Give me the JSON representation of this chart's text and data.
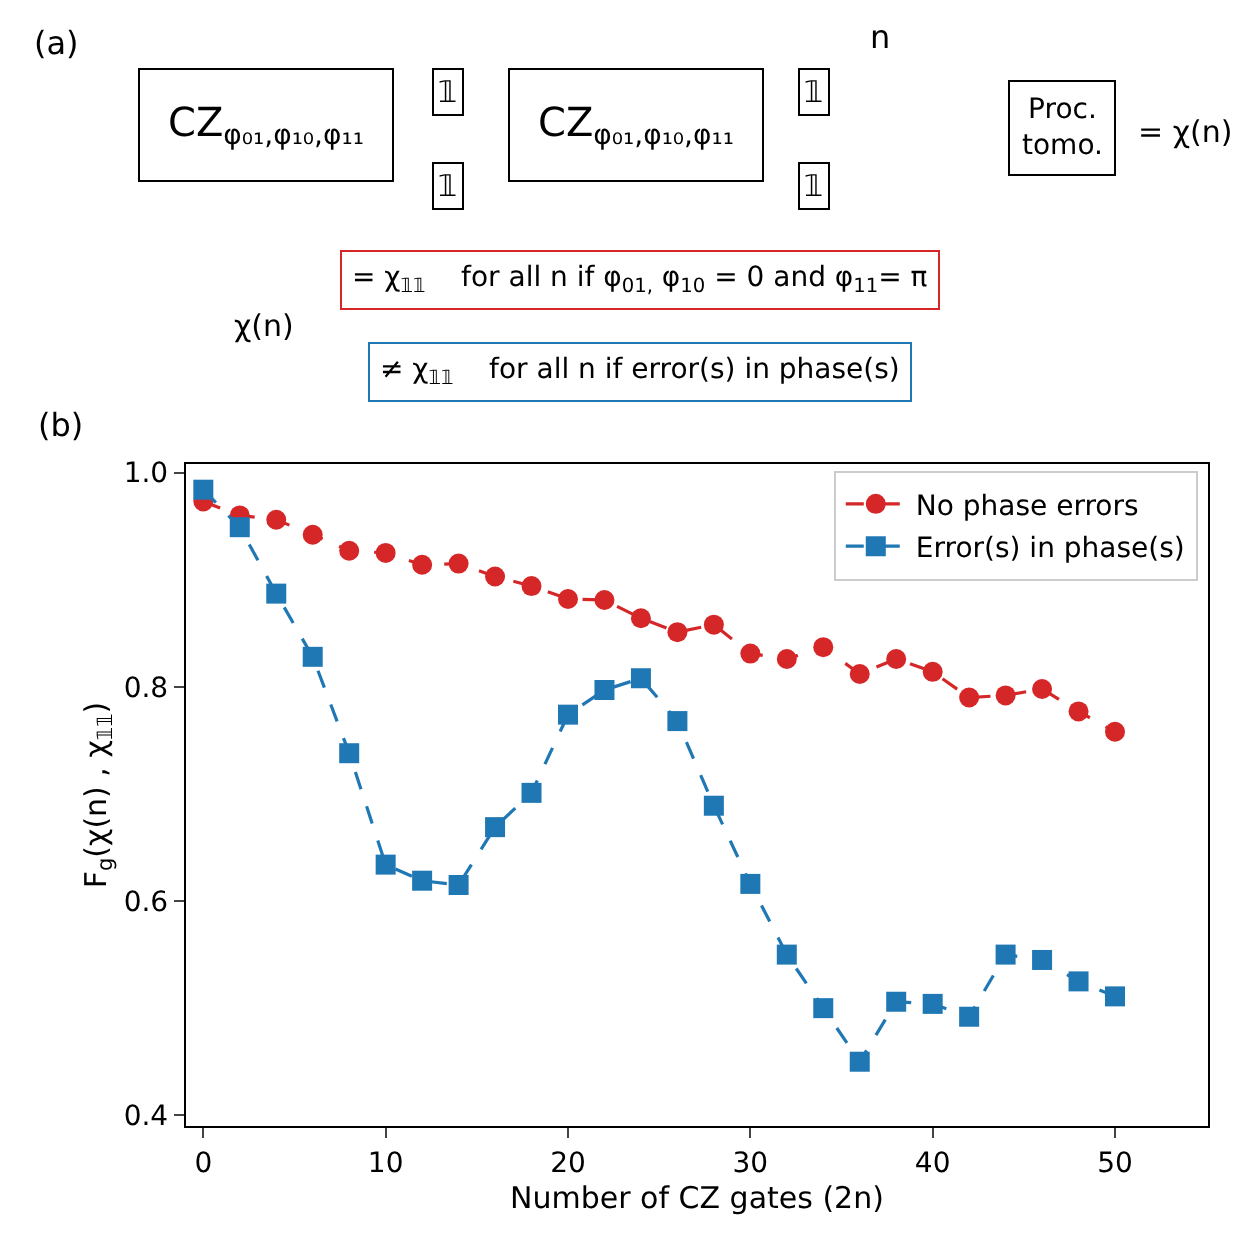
{
  "chart_data": {
    "type": "line",
    "xlabel": "Number of CZ gates (2n)",
    "ylabel": "F$_{g}$(χ(n) , χ$_{𝟙𝟙}$)",
    "x": [
      0,
      2,
      4,
      6,
      8,
      10,
      12,
      14,
      16,
      18,
      20,
      22,
      24,
      26,
      28,
      30,
      32,
      34,
      36,
      38,
      40,
      42,
      44,
      46,
      48,
      50
    ],
    "series": [
      {
        "name": "No phase errors",
        "color": "#d62728",
        "marker": "circle",
        "values": [
          0.973,
          0.96,
          0.956,
          0.942,
          0.927,
          0.925,
          0.914,
          0.915,
          0.903,
          0.894,
          0.882,
          0.881,
          0.864,
          0.851,
          0.858,
          0.831,
          0.826,
          0.837,
          0.812,
          0.826,
          0.814,
          0.79,
          0.792,
          0.798,
          0.777,
          0.758
        ]
      },
      {
        "name": "Error(s) in phase(s)",
        "color": "#1f77b4",
        "marker": "square",
        "values": [
          0.984,
          0.949,
          0.887,
          0.828,
          0.738,
          0.634,
          0.619,
          0.615,
          0.669,
          0.701,
          0.774,
          0.797,
          0.808,
          0.768,
          0.689,
          0.616,
          0.55,
          0.5,
          0.45,
          0.506,
          0.504,
          0.492,
          0.55,
          0.545,
          0.525,
          0.511
        ]
      }
    ],
    "xlim": [
      -0.95,
      55.1
    ],
    "xticks": [
      0,
      10,
      20,
      30,
      40,
      50
    ],
    "ylim": [
      0.39,
      1.008
    ],
    "yticks": [
      {
        "value": 0.4,
        "label": "0.4"
      },
      {
        "value": 0.6,
        "label": "0.6"
      },
      {
        "value": 0.8,
        "label": "0.8"
      },
      {
        "value": 1,
        "label": "1.0"
      }
    ],
    "line_style": "dashed",
    "legend": "top right",
    "annotations": [
      "(a)",
      "CZ$_{φ₀₁,φ₁₀,φ₁₁}$",
      "𝟙",
      "𝟙",
      "CZ$_{φ₀₁,φ₁₀,φ₁₁}$",
      "𝟙",
      "𝟙",
      "n",
      "Proc.\ntomo.",
      "= χ(n)",
      "χ(n)",
      "= χ$_{𝟙𝟙}$    for all n if φ$_{01,}$ φ$_{10}$ = 0 and φ$_{11}$= π",
      "≠ χ$_{𝟙𝟙}$    for all n if error(s) in phase(s)",
      "(b)"
    ]
  }
}
